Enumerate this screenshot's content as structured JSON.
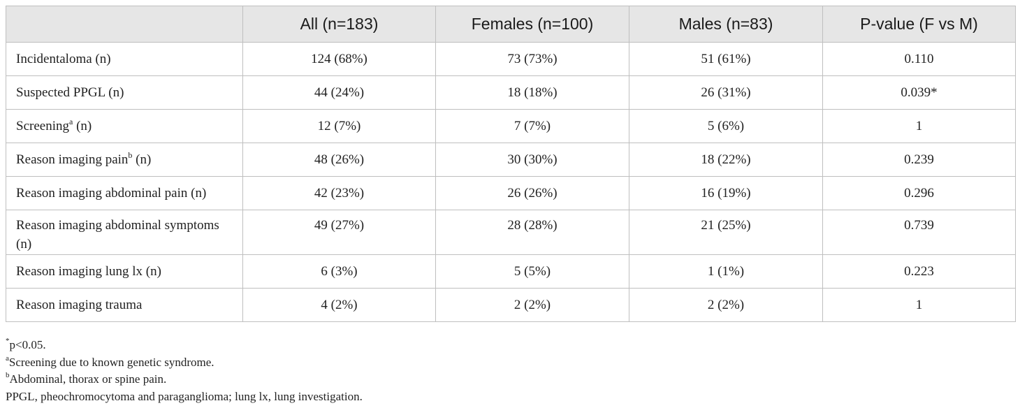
{
  "table": {
    "headers": [
      "",
      "All (n=183)",
      "Females (n=100)",
      "Males (n=83)",
      "P-value (F vs M)"
    ],
    "rows": [
      {
        "label": "Incidentaloma (n)",
        "label_main": "Incidentaloma (n)",
        "label_sup": "",
        "label_tail": "",
        "cells": [
          "124 (68%)",
          "73 (73%)",
          "51 (61%)",
          "0.110"
        ]
      },
      {
        "label": "Suspected PPGL (n)",
        "label_main": "Suspected PPGL (n)",
        "label_sup": "",
        "label_tail": "",
        "cells": [
          "44 (24%)",
          "18 (18%)",
          "26 (31%)",
          "0.039*"
        ]
      },
      {
        "label": "Screening(a) (n)",
        "label_main": "Screening",
        "label_sup": "a",
        "label_tail": " (n)",
        "cells": [
          "12 (7%)",
          "7 (7%)",
          "5 (6%)",
          "1"
        ]
      },
      {
        "label": "Reason imaging pain(b) (n)",
        "label_main": "Reason imaging pain",
        "label_sup": "b",
        "label_tail": " (n)",
        "cells": [
          "48 (26%)",
          "30 (30%)",
          "18 (22%)",
          "0.239"
        ]
      },
      {
        "label": "Reason imaging abdominal pain (n)",
        "label_main": "Reason imaging abdominal pain (n)",
        "label_sup": "",
        "label_tail": "",
        "cells": [
          "42 (23%)",
          "26 (26%)",
          "16 (19%)",
          "0.296"
        ]
      },
      {
        "label": "Reason imaging abdominal symptoms (n)",
        "label_main": "Reason imaging abdominal symptoms (n)",
        "label_sup": "",
        "label_tail": "",
        "cells": [
          "49 (27%)",
          "28 (28%)",
          "21 (25%)",
          "0.739"
        ]
      },
      {
        "label": "Reason imaging lung lx (n)",
        "label_main": "Reason imaging lung lx (n)",
        "label_sup": "",
        "label_tail": "",
        "cells": [
          "6 (3%)",
          "5 (5%)",
          "1 (1%)",
          "0.223"
        ]
      },
      {
        "label": "Reason imaging trauma",
        "label_main": "Reason imaging trauma",
        "label_sup": "",
        "label_tail": "",
        "cells": [
          "4 (2%)",
          "2 (2%)",
          "2 (2%)",
          "1"
        ]
      }
    ]
  },
  "footnotes": [
    {
      "mark": "*",
      "text": "p<0.05."
    },
    {
      "mark": "a",
      "text": "Screening due to known genetic syndrome."
    },
    {
      "mark": "b",
      "text": "Abdominal, thorax or spine pain."
    },
    {
      "mark": "",
      "text": "PPGL, pheochromocytoma and paraganglioma; lung lx, lung investigation."
    }
  ],
  "colors": {
    "header_bg": "#e6e6e6",
    "border": "#bfbfbf",
    "text": "#222222"
  }
}
